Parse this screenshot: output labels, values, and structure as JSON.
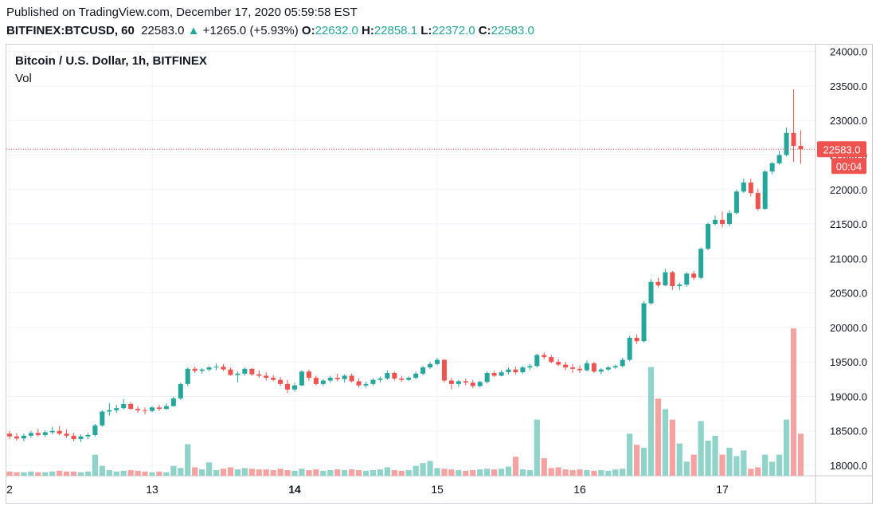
{
  "header": {
    "published": "Published on TradingView.com, December 17, 2020 05:59:58 EST",
    "symbol": "BITFINEX:BTCUSD, 60",
    "last": "22583.0",
    "up_arrow": "▲",
    "change": "+1265.0 (+5.93%)",
    "o_label": "O:",
    "o": "22632.0",
    "h_label": "H:",
    "h": "22858.1",
    "l_label": "L:",
    "l": "22372.0",
    "c_label": "C:",
    "c": "22583.0"
  },
  "legend": {
    "title": "Bitcoin / U.S. Dollar, 1h, BITFINEX",
    "volume": "Vol"
  },
  "price_tag": {
    "value": "22583.0",
    "countdown": "00:04"
  },
  "colors": {
    "up": "#26a69a",
    "down": "#ef5350",
    "up_vol": "#8fd3c9",
    "down_vol": "#f4a3a2",
    "grid": "#f0f3fa"
  },
  "chart_data": {
    "type": "candlestick",
    "y_ticks": [
      "24000.0",
      "23500.0",
      "23000.0",
      "22500.0",
      "22000.0",
      "21500.0",
      "21000.0",
      "20500.0",
      "20000.0",
      "19500.0",
      "19000.0",
      "18500.0",
      "18000.0"
    ],
    "ylim": [
      17850,
      24100
    ],
    "x_ticks": [
      {
        "label": "2",
        "bar": 0,
        "bold": false
      },
      {
        "label": "13",
        "bar": 20,
        "bold": false
      },
      {
        "label": "14",
        "bar": 40,
        "bold": true
      },
      {
        "label": "15",
        "bar": 60,
        "bold": false
      },
      {
        "label": "16",
        "bar": 80,
        "bold": false
      },
      {
        "label": "17",
        "bar": 100,
        "bold": false
      }
    ],
    "candles": [
      [
        18460,
        18500,
        18380,
        18420,
        6
      ],
      [
        18420,
        18470,
        18360,
        18390,
        5
      ],
      [
        18390,
        18460,
        18350,
        18430,
        5
      ],
      [
        18430,
        18500,
        18400,
        18470,
        6
      ],
      [
        18470,
        18530,
        18420,
        18440,
        5
      ],
      [
        18440,
        18510,
        18410,
        18480,
        5
      ],
      [
        18480,
        18560,
        18450,
        18500,
        6
      ],
      [
        18500,
        18570,
        18440,
        18460,
        7
      ],
      [
        18460,
        18520,
        18400,
        18430,
        6
      ],
      [
        18430,
        18470,
        18350,
        18380,
        6
      ],
      [
        18380,
        18450,
        18340,
        18420,
        5
      ],
      [
        18420,
        18470,
        18380,
        18440,
        6
      ],
      [
        18440,
        18600,
        18420,
        18580,
        30
      ],
      [
        18580,
        18800,
        18560,
        18780,
        14
      ],
      [
        18780,
        18900,
        18720,
        18800,
        8
      ],
      [
        18800,
        18880,
        18760,
        18830,
        6
      ],
      [
        18830,
        18960,
        18810,
        18890,
        7
      ],
      [
        18890,
        18920,
        18800,
        18820,
        8
      ],
      [
        18820,
        18860,
        18760,
        18800,
        7
      ],
      [
        18800,
        18840,
        18740,
        18790,
        6
      ],
      [
        18790,
        18860,
        18770,
        18840,
        5
      ],
      [
        18840,
        18880,
        18790,
        18820,
        6
      ],
      [
        18820,
        18900,
        18800,
        18860,
        5
      ],
      [
        18860,
        19000,
        18850,
        18970,
        14
      ],
      [
        18970,
        19200,
        18950,
        19180,
        11
      ],
      [
        19180,
        19420,
        19150,
        19400,
        45
      ],
      [
        19400,
        19430,
        19340,
        19370,
        12
      ],
      [
        19370,
        19410,
        19330,
        19390,
        9
      ],
      [
        19390,
        19440,
        19360,
        19420,
        19
      ],
      [
        19420,
        19480,
        19380,
        19430,
        8
      ],
      [
        19430,
        19470,
        19370,
        19390,
        10
      ],
      [
        19390,
        19420,
        19300,
        19310,
        12
      ],
      [
        19310,
        19360,
        19200,
        19330,
        9
      ],
      [
        19330,
        19420,
        19300,
        19400,
        11
      ],
      [
        19400,
        19410,
        19300,
        19320,
        10
      ],
      [
        19320,
        19380,
        19270,
        19300,
        9
      ],
      [
        19300,
        19350,
        19230,
        19270,
        9
      ],
      [
        19270,
        19310,
        19220,
        19240,
        8
      ],
      [
        19240,
        19280,
        19150,
        19180,
        10
      ],
      [
        19180,
        19240,
        19050,
        19100,
        8
      ],
      [
        19100,
        19200,
        19070,
        19160,
        7
      ],
      [
        19160,
        19380,
        19150,
        19360,
        10
      ],
      [
        19360,
        19390,
        19230,
        19270,
        8
      ],
      [
        19270,
        19300,
        19160,
        19180,
        9
      ],
      [
        19180,
        19250,
        19150,
        19230,
        7
      ],
      [
        19230,
        19300,
        19200,
        19270,
        8
      ],
      [
        19270,
        19330,
        19220,
        19250,
        9
      ],
      [
        19250,
        19320,
        19200,
        19300,
        8
      ],
      [
        19300,
        19330,
        19200,
        19220,
        9
      ],
      [
        19220,
        19260,
        19130,
        19160,
        8
      ],
      [
        19160,
        19210,
        19130,
        19180,
        7
      ],
      [
        19180,
        19260,
        19160,
        19240,
        8
      ],
      [
        19240,
        19290,
        19200,
        19260,
        9
      ],
      [
        19260,
        19380,
        19240,
        19340,
        12
      ],
      [
        19340,
        19360,
        19230,
        19260,
        8
      ],
      [
        19260,
        19300,
        19210,
        19240,
        7
      ],
      [
        19240,
        19290,
        19220,
        19270,
        8
      ],
      [
        19270,
        19360,
        19250,
        19330,
        14
      ],
      [
        19330,
        19440,
        19310,
        19420,
        18
      ],
      [
        19420,
        19500,
        19400,
        19470,
        21
      ],
      [
        19470,
        19560,
        19450,
        19530,
        11
      ],
      [
        19530,
        19540,
        19200,
        19230,
        10
      ],
      [
        19230,
        19270,
        19100,
        19180,
        9
      ],
      [
        19180,
        19240,
        19140,
        19220,
        8
      ],
      [
        19220,
        19260,
        19160,
        19200,
        7
      ],
      [
        19200,
        19240,
        19120,
        19150,
        8
      ],
      [
        19150,
        19230,
        19130,
        19210,
        9
      ],
      [
        19210,
        19360,
        19190,
        19340,
        10
      ],
      [
        19340,
        19370,
        19280,
        19300,
        9
      ],
      [
        19300,
        19380,
        19290,
        19350,
        10
      ],
      [
        19350,
        19420,
        19320,
        19390,
        13
      ],
      [
        19390,
        19430,
        19320,
        19350,
        27
      ],
      [
        19350,
        19440,
        19330,
        19420,
        9
      ],
      [
        19420,
        19470,
        19380,
        19440,
        8
      ],
      [
        19440,
        19620,
        19420,
        19600,
        80
      ],
      [
        19600,
        19640,
        19540,
        19570,
        25
      ],
      [
        19570,
        19600,
        19480,
        19500,
        11
      ],
      [
        19500,
        19540,
        19440,
        19460,
        12
      ],
      [
        19460,
        19500,
        19380,
        19420,
        9
      ],
      [
        19420,
        19470,
        19340,
        19400,
        8
      ],
      [
        19400,
        19450,
        19340,
        19380,
        9
      ],
      [
        19380,
        19520,
        19360,
        19480,
        8
      ],
      [
        19480,
        19500,
        19340,
        19360,
        7
      ],
      [
        19360,
        19410,
        19320,
        19390,
        8
      ],
      [
        19390,
        19440,
        19370,
        19420,
        7
      ],
      [
        19420,
        19460,
        19400,
        19440,
        9
      ],
      [
        19440,
        19560,
        19420,
        19530,
        10
      ],
      [
        19530,
        19880,
        19510,
        19850,
        60
      ],
      [
        19850,
        19900,
        19760,
        19800,
        44
      ],
      [
        19800,
        20380,
        19780,
        20350,
        40
      ],
      [
        20350,
        20700,
        20330,
        20660,
        155
      ],
      [
        20660,
        20720,
        20580,
        20610,
        110
      ],
      [
        20610,
        20850,
        20600,
        20800,
        95
      ],
      [
        20800,
        20820,
        20540,
        20600,
        80
      ],
      [
        20600,
        20650,
        20540,
        20620,
        46
      ],
      [
        20620,
        20800,
        20590,
        20780,
        20
      ],
      [
        20780,
        20820,
        20690,
        20720,
        30
      ],
      [
        20720,
        21160,
        20700,
        21140,
        78
      ],
      [
        21140,
        21520,
        21120,
        21500,
        50
      ],
      [
        21500,
        21620,
        21480,
        21560,
        57
      ],
      [
        21560,
        21680,
        21450,
        21500,
        30
      ],
      [
        21500,
        21700,
        21470,
        21660,
        40
      ],
      [
        21660,
        22000,
        21640,
        21970,
        28
      ],
      [
        21970,
        22160,
        21950,
        22100,
        36
      ],
      [
        22100,
        22160,
        21900,
        21950,
        10
      ],
      [
        21950,
        22010,
        21690,
        21720,
        12
      ],
      [
        21720,
        22280,
        21700,
        22260,
        30
      ],
      [
        22260,
        22400,
        22220,
        22380,
        20
      ],
      [
        22380,
        22560,
        22360,
        22500,
        30
      ],
      [
        22500,
        22900,
        22480,
        22820,
        80
      ],
      [
        22820,
        23450,
        22400,
        22632,
        210
      ],
      [
        22632,
        22858,
        22372,
        22583,
        60
      ]
    ]
  }
}
